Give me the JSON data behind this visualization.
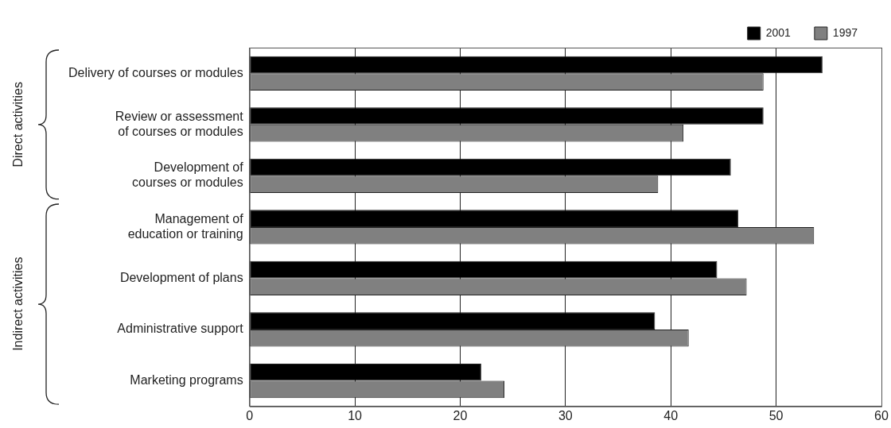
{
  "chart_data": {
    "type": "bar",
    "orientation": "horizontal",
    "categories": [
      "Delivery of courses or modules",
      "Review or assessment of courses or modules",
      "Development of courses or modules",
      "Management of education or training",
      "Development of plans",
      "Administrative support",
      "Marketing programs"
    ],
    "series": [
      {
        "name": "2001",
        "color": "#000000",
        "values": [
          54.4,
          48.8,
          45.7,
          46.4,
          44.4,
          38.5,
          22.0
        ]
      },
      {
        "name": "1997",
        "color": "#808080",
        "values": [
          48.8,
          41.2,
          38.8,
          53.6,
          47.2,
          41.7,
          24.2
        ]
      }
    ],
    "xlim": [
      0,
      60
    ],
    "xticks": [
      0,
      10,
      20,
      30,
      40,
      50,
      60
    ],
    "grid": "x",
    "legend": "top right",
    "annotations": [
      "Direct activities",
      "Indirect activities"
    ]
  }
}
